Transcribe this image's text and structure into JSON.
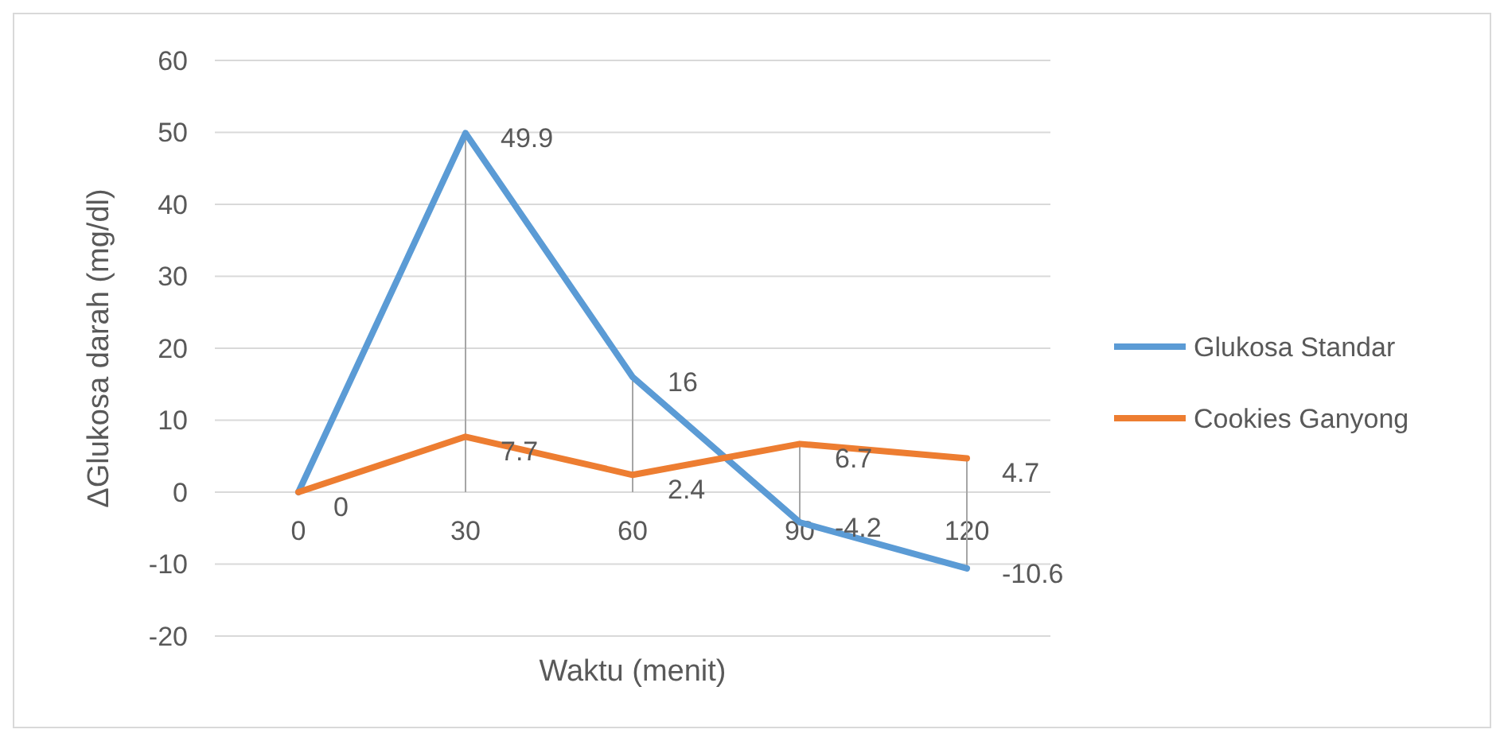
{
  "chart_data": {
    "type": "line",
    "xlabel": "Waktu (menit)",
    "ylabel": "ΔGlukosa darah (mg/dl)",
    "categories": [
      "0",
      "30",
      "60",
      "90",
      "120"
    ],
    "series": [
      {
        "name": "Glukosa Standar",
        "color": "#5b9bd5",
        "values": [
          0,
          49.9,
          16,
          -4.2,
          -10.6
        ],
        "value_labels": [
          null,
          "49.9",
          "16",
          "-4.2",
          "-10.6"
        ]
      },
      {
        "name": "Cookies Ganyong",
        "color": "#ed7d31",
        "values": [
          0,
          7.7,
          2.4,
          6.7,
          4.7
        ],
        "value_labels": [
          "0",
          "7.7",
          "2.4",
          "6.7",
          "4.7"
        ]
      }
    ],
    "ylim": [
      -20,
      60
    ],
    "yticks": [
      -20,
      -10,
      0,
      10,
      20,
      30,
      40,
      50,
      60
    ],
    "grid": "y",
    "legend": "right",
    "marker": "none",
    "line_style": "solid"
  }
}
